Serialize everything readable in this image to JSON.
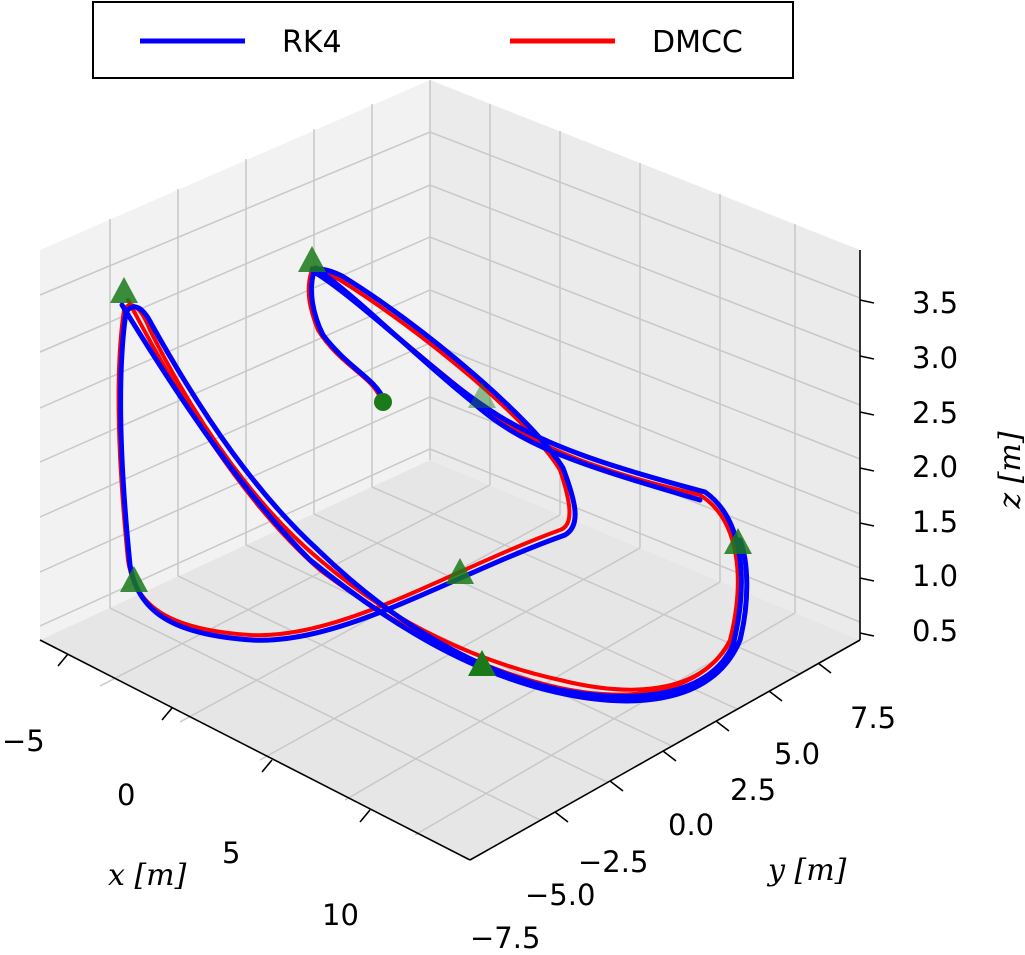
{
  "chart_data": {
    "type": "line3d",
    "title": "",
    "legend": {
      "position": "top",
      "entries": [
        {
          "name": "RK4",
          "color": "#0000ff"
        },
        {
          "name": "DMCC",
          "color": "#ff0000"
        }
      ]
    },
    "axes": {
      "x": {
        "label": "x [m]",
        "unit": "m",
        "ticks": [
          -5,
          0,
          5,
          10
        ],
        "tick_labels": [
          "−5",
          "0",
          "5",
          "10"
        ]
      },
      "y": {
        "label": "y [m]",
        "unit": "m",
        "ticks": [
          -7.5,
          -5.0,
          -2.5,
          0.0,
          2.5,
          5.0,
          7.5
        ],
        "tick_labels": [
          "−7.5",
          "−5.0",
          "−2.5",
          "0.0",
          "2.5",
          "5.0",
          "7.5"
        ]
      },
      "z": {
        "label": "z [m]",
        "unit": "m",
        "ticks": [
          0.5,
          1.0,
          1.5,
          2.0,
          2.5,
          3.0,
          3.5
        ],
        "tick_labels": [
          "0.5",
          "1.0",
          "1.5",
          "2.0",
          "2.5",
          "3.0",
          "3.5"
        ]
      }
    },
    "grid": true,
    "colors": {
      "rk4": "#0000ff",
      "dmcc": "#ff0000",
      "marker": "#1a7a1a",
      "grid": "#c8c8c8"
    },
    "start_point": {
      "x": 0,
      "y": 0,
      "z": 2.5
    },
    "waypoints": [
      {
        "x": -5,
        "y": -2,
        "z": 3.5
      },
      {
        "x": -2,
        "y": 4,
        "z": 3.6
      },
      {
        "x": 0,
        "y": 6,
        "z": 2.5
      },
      {
        "x": 9,
        "y": 7,
        "z": 1.5
      },
      {
        "x": 10,
        "y": 0,
        "z": 0.5
      },
      {
        "x": 2,
        "y": 1,
        "z": 1.2
      },
      {
        "x": -3,
        "y": -6,
        "z": 1.0
      }
    ]
  }
}
